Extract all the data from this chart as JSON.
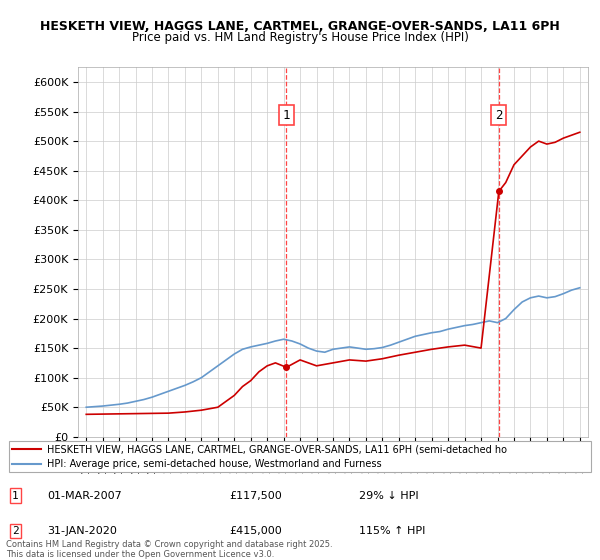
{
  "title_line1": "HESKETH VIEW, HAGGS LANE, CARTMEL, GRANGE-OVER-SANDS, LA11 6PH",
  "title_line2": "Price paid vs. HM Land Registry's House Price Index (HPI)",
  "ylim": [
    0,
    625000
  ],
  "yticks": [
    0,
    50000,
    100000,
    150000,
    200000,
    250000,
    300000,
    350000,
    400000,
    450000,
    500000,
    550000,
    600000
  ],
  "ytick_labels": [
    "£0",
    "£50K",
    "£100K",
    "£150K",
    "£200K",
    "£250K",
    "£300K",
    "£350K",
    "£400K",
    "£450K",
    "£500K",
    "£550K",
    "£600K"
  ],
  "xlim_start": 1994.5,
  "xlim_end": 2025.5,
  "transaction1_x": 2007.17,
  "transaction1_y": 117500,
  "transaction1_label": "1",
  "transaction2_x": 2020.08,
  "transaction2_y": 415000,
  "transaction2_label": "2",
  "red_color": "#cc0000",
  "blue_color": "#6699cc",
  "dashed_color": "#ff4444",
  "background_color": "#ffffff",
  "legend_text1": "HESKETH VIEW, HAGGS LANE, CARTMEL, GRANGE-OVER-SANDS, LA11 6PH (semi-detached ho",
  "legend_text2": "HPI: Average price, semi-detached house, Westmorland and Furness",
  "annotation1_date": "01-MAR-2007",
  "annotation1_price": "£117,500",
  "annotation1_pct": "29% ↓ HPI",
  "annotation2_date": "31-JAN-2020",
  "annotation2_price": "£415,000",
  "annotation2_pct": "115% ↑ HPI",
  "footer": "Contains HM Land Registry data © Crown copyright and database right 2025.\nThis data is licensed under the Open Government Licence v3.0.",
  "hpi_years": [
    1995,
    1995.5,
    1996,
    1996.5,
    1997,
    1997.5,
    1998,
    1998.5,
    1999,
    1999.5,
    2000,
    2000.5,
    2001,
    2001.5,
    2002,
    2002.5,
    2003,
    2003.5,
    2004,
    2004.5,
    2005,
    2005.5,
    2006,
    2006.5,
    2007,
    2007.5,
    2008,
    2008.5,
    2009,
    2009.5,
    2010,
    2010.5,
    2011,
    2011.5,
    2012,
    2012.5,
    2013,
    2013.5,
    2014,
    2014.5,
    2015,
    2015.5,
    2016,
    2016.5,
    2017,
    2017.5,
    2018,
    2018.5,
    2019,
    2019.5,
    2020,
    2020.5,
    2021,
    2021.5,
    2022,
    2022.5,
    2023,
    2023.5,
    2024,
    2024.5,
    2025
  ],
  "hpi_values": [
    50000,
    51000,
    52000,
    53500,
    55000,
    57000,
    60000,
    63000,
    67000,
    72000,
    77000,
    82000,
    87000,
    93000,
    100000,
    110000,
    120000,
    130000,
    140000,
    148000,
    152000,
    155000,
    158000,
    162000,
    165000,
    162000,
    157000,
    150000,
    145000,
    143000,
    148000,
    150000,
    152000,
    150000,
    148000,
    149000,
    151000,
    155000,
    160000,
    165000,
    170000,
    173000,
    176000,
    178000,
    182000,
    185000,
    188000,
    190000,
    193000,
    196000,
    193000,
    200000,
    215000,
    228000,
    235000,
    238000,
    235000,
    237000,
    242000,
    248000,
    252000
  ],
  "prop_years": [
    1995,
    2000,
    2001,
    2002,
    2003,
    2004,
    2004.5,
    2005,
    2005.5,
    2006,
    2006.5,
    2007.17,
    2008,
    2009,
    2010,
    2011,
    2012,
    2013,
    2014,
    2015,
    2016,
    2017,
    2018,
    2019,
    2020.08,
    2020.5,
    2021,
    2021.5,
    2022,
    2022.5,
    2023,
    2023.5,
    2024,
    2024.5,
    2025
  ],
  "prop_values": [
    38000,
    40000,
    42000,
    45000,
    50000,
    70000,
    85000,
    95000,
    110000,
    120000,
    125000,
    117500,
    130000,
    120000,
    125000,
    130000,
    128000,
    132000,
    138000,
    143000,
    148000,
    152000,
    155000,
    150000,
    415000,
    430000,
    460000,
    475000,
    490000,
    500000,
    495000,
    498000,
    505000,
    510000,
    515000
  ]
}
